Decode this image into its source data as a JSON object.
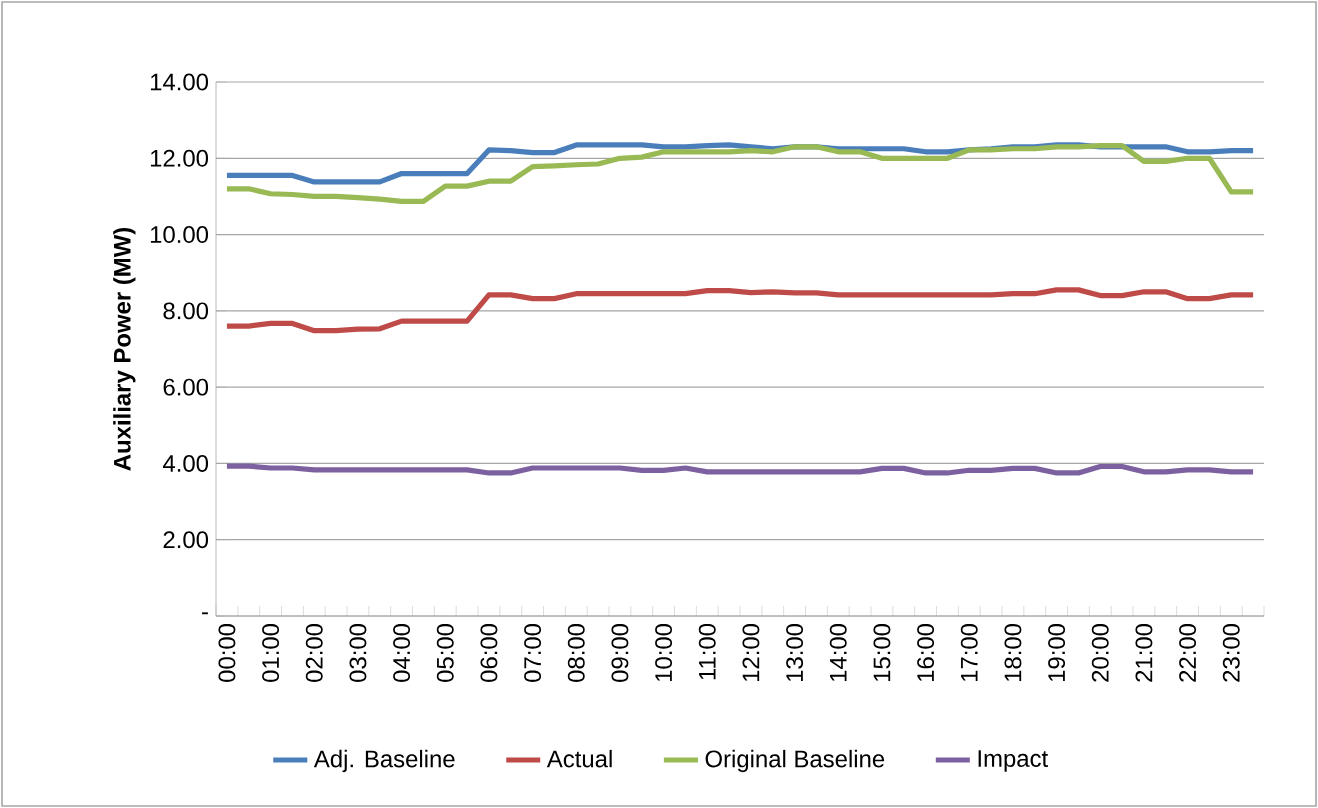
{
  "chart_data": {
    "type": "line",
    "ylabel": "Auxiliary Power (MW)",
    "categories": [
      "00:00",
      null,
      "01:00",
      null,
      "02:00",
      null,
      "03:00",
      null,
      "04:00",
      null,
      "05:00",
      null,
      "06:00",
      null,
      "07:00",
      null,
      "08:00",
      null,
      "09:00",
      null,
      "10:00",
      null,
      "11:00",
      null,
      "12:00",
      null,
      "13:00",
      null,
      "14:00",
      null,
      "15:00",
      null,
      "16:00",
      null,
      "17:00",
      null,
      "18:00",
      null,
      "19:00",
      null,
      "20:00",
      null,
      "21:00",
      null,
      "22:00",
      null,
      "23:00",
      null
    ],
    "series": [
      {
        "name": "Adj. Baseline",
        "color": "#4a7ebb",
        "values": [
          11.55,
          11.55,
          11.55,
          11.55,
          11.38,
          11.38,
          11.38,
          11.38,
          11.6,
          11.6,
          11.6,
          11.6,
          12.22,
          12.2,
          12.15,
          12.15,
          12.35,
          12.35,
          12.35,
          12.35,
          12.3,
          12.3,
          12.33,
          12.35,
          12.3,
          12.25,
          12.3,
          12.3,
          12.25,
          12.25,
          12.25,
          12.25,
          12.17,
          12.17,
          12.22,
          12.25,
          12.3,
          12.3,
          12.35,
          12.35,
          12.3,
          12.3,
          12.3,
          12.3,
          12.17,
          12.17,
          12.2,
          12.2
        ]
      },
      {
        "name": "Actual",
        "color": "#be4b48",
        "values": [
          7.6,
          7.6,
          7.67,
          7.67,
          7.48,
          7.48,
          7.52,
          7.53,
          7.73,
          7.73,
          7.73,
          7.73,
          8.42,
          8.42,
          8.32,
          8.32,
          8.45,
          8.45,
          8.45,
          8.45,
          8.45,
          8.45,
          8.53,
          8.53,
          8.48,
          8.5,
          8.47,
          8.47,
          8.42,
          8.42,
          8.42,
          8.42,
          8.42,
          8.42,
          8.42,
          8.42,
          8.45,
          8.45,
          8.55,
          8.55,
          8.4,
          8.4,
          8.5,
          8.5,
          8.32,
          8.32,
          8.42,
          8.42
        ]
      },
      {
        "name": "Original Baseline",
        "color": "#98b954",
        "values": [
          11.2,
          11.2,
          11.07,
          11.05,
          11.0,
          11.0,
          10.97,
          10.93,
          10.87,
          10.87,
          11.27,
          11.27,
          11.4,
          11.4,
          11.78,
          11.8,
          11.83,
          11.85,
          12.0,
          12.03,
          12.17,
          12.17,
          12.17,
          12.17,
          12.2,
          12.17,
          12.3,
          12.3,
          12.17,
          12.17,
          12.0,
          12.0,
          12.0,
          12.0,
          12.22,
          12.22,
          12.25,
          12.25,
          12.3,
          12.3,
          12.33,
          12.33,
          11.92,
          11.92,
          12.0,
          12.0,
          11.12,
          11.12
        ]
      },
      {
        "name": "Impact",
        "color": "#7d60a0",
        "values": [
          3.93,
          3.93,
          3.88,
          3.88,
          3.83,
          3.83,
          3.83,
          3.83,
          3.83,
          3.83,
          3.83,
          3.83,
          3.75,
          3.75,
          3.88,
          3.88,
          3.88,
          3.88,
          3.88,
          3.82,
          3.82,
          3.88,
          3.78,
          3.78,
          3.78,
          3.78,
          3.78,
          3.78,
          3.78,
          3.78,
          3.87,
          3.87,
          3.75,
          3.75,
          3.82,
          3.82,
          3.87,
          3.87,
          3.75,
          3.75,
          3.92,
          3.92,
          3.78,
          3.78,
          3.83,
          3.83,
          3.78,
          3.78
        ]
      }
    ],
    "ylim": [
      0,
      14
    ],
    "yticks": [
      {
        "value": 0,
        "label": "-"
      },
      {
        "value": 2,
        "label": "2.00"
      },
      {
        "value": 4,
        "label": "4.00"
      },
      {
        "value": 6,
        "label": "6.00"
      },
      {
        "value": 8,
        "label": "8.00"
      },
      {
        "value": 10,
        "label": "10.00"
      },
      {
        "value": 12,
        "label": "12.00"
      },
      {
        "value": 14,
        "label": "14.00"
      }
    ],
    "grid": "y",
    "legend": "bottom",
    "marker": "none",
    "line_style": "solid"
  }
}
